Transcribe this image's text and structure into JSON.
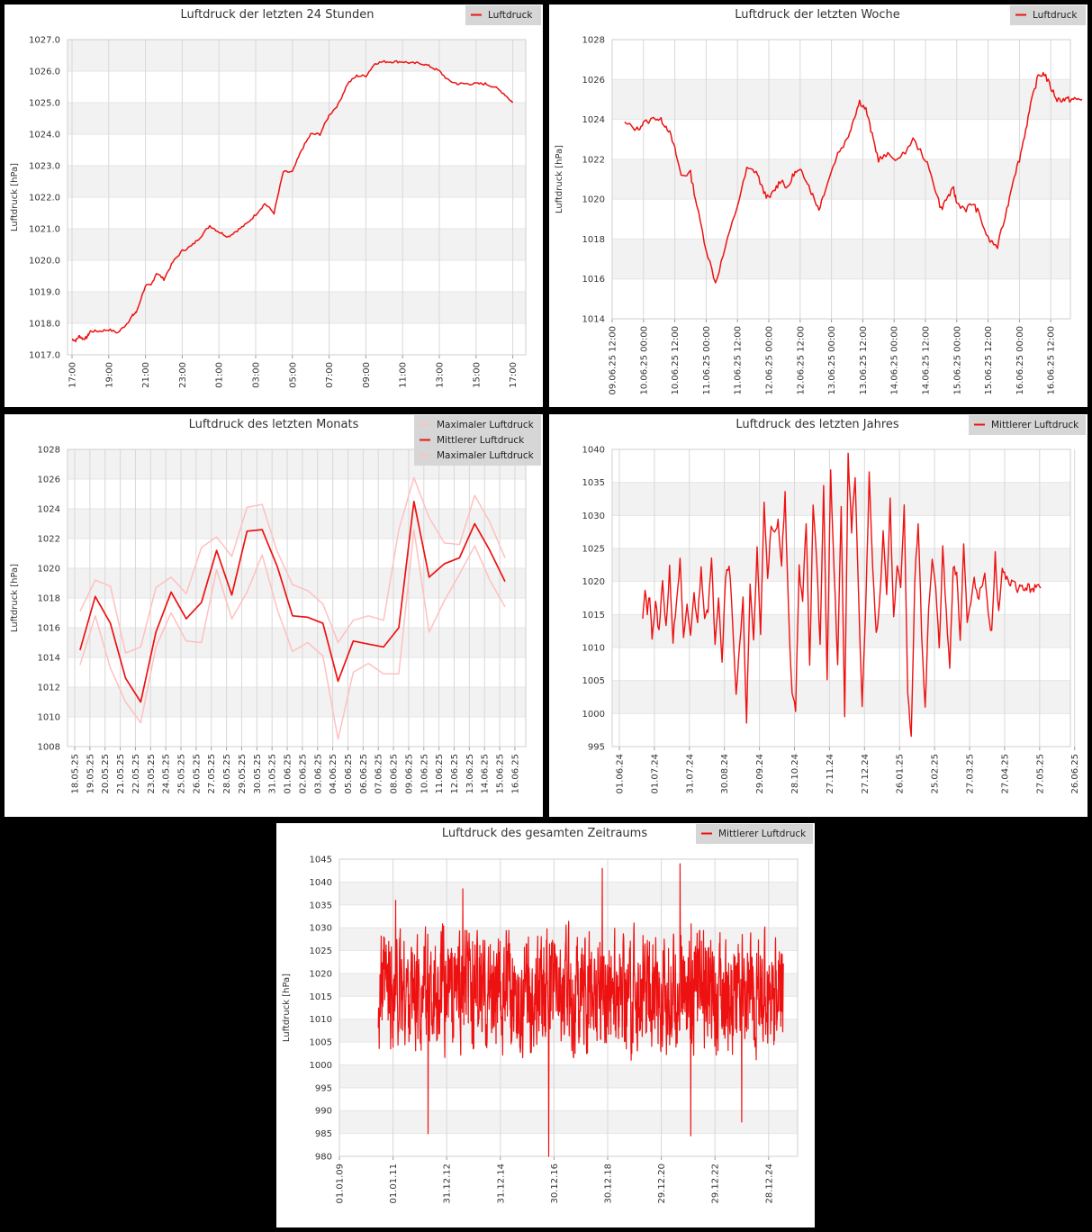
{
  "colors": {
    "background": "#000000",
    "panel": "#ffffff",
    "band": "#f2f2f2",
    "grid": "#d8d8d8",
    "line": "#ee1111",
    "line_light": "#ffc0c0",
    "legend_bg": "#d6d6d6"
  },
  "chart_data": [
    {
      "id": "day",
      "type": "line",
      "title": "Luftdruck der letzten 24 Stunden",
      "ylabel": "Luftdruck [hPa]",
      "xlabel": "",
      "ylim": [
        1017.0,
        1027.0
      ],
      "y_ticks": [
        "1017.0",
        "1018.0",
        "1019.0",
        "1020.0",
        "1021.0",
        "1022.0",
        "1023.0",
        "1024.0",
        "1025.0",
        "1026.0",
        "1027.0"
      ],
      "x_ticks": [
        "17:00",
        "19:00",
        "21:00",
        "23:00",
        "01:00",
        "03:00",
        "05:00",
        "07:00",
        "09:00",
        "11:00",
        "13:00",
        "15:00",
        "17:00"
      ],
      "grid": true,
      "legend_position": "top-right",
      "x": [
        0,
        0.2,
        0.4,
        0.6,
        0.8,
        1,
        1.5,
        2,
        2.5,
        3,
        3.3,
        3.5,
        4,
        4.3,
        4.6,
        5,
        5.5,
        6,
        6.5,
        7,
        7.5,
        8,
        8.5,
        9,
        9.5,
        10,
        10.5,
        11,
        11.5,
        12,
        12.5,
        13,
        13.5,
        14,
        14.5,
        15,
        15.5,
        16,
        16.5,
        17,
        17.5,
        18,
        18.5,
        19,
        19.5,
        20,
        20.5,
        21,
        21.5,
        22,
        22.5,
        23,
        23.5,
        24
      ],
      "series": [
        {
          "name": "Luftdruck",
          "color": "#ee1111",
          "values": [
            1017.5,
            1017.45,
            1017.6,
            1017.5,
            1017.55,
            1017.75,
            1017.75,
            1017.8,
            1017.7,
            1018.0,
            1018.25,
            1018.35,
            1019.2,
            1019.2,
            1019.6,
            1019.4,
            1019.95,
            1020.3,
            1020.45,
            1020.75,
            1021.1,
            1020.9,
            1020.75,
            1020.95,
            1021.15,
            1021.45,
            1021.8,
            1021.5,
            1022.8,
            1022.8,
            1023.5,
            1024.0,
            1024.0,
            1024.6,
            1024.95,
            1025.6,
            1025.85,
            1025.85,
            1026.25,
            1026.3,
            1026.3,
            1026.3,
            1026.25,
            1026.25,
            1026.15,
            1026.0,
            1025.7,
            1025.6,
            1025.6,
            1025.6,
            1025.6,
            1025.5,
            1025.3,
            1025.0
          ]
        }
      ]
    },
    {
      "id": "week",
      "type": "line",
      "title": "Luftdruck der letzten Woche",
      "ylabel": "Luftdruck [hPa]",
      "xlabel": "",
      "ylim": [
        1014,
        1028
      ],
      "y_ticks": [
        "1014",
        "1016",
        "1018",
        "1020",
        "1022",
        "1024",
        "1026",
        "1028"
      ],
      "x_ticks": [
        "09.06.25 12:00",
        "10.06.25 00:00",
        "10.06.25 12:00",
        "11.06.25 00:00",
        "11.06.25 12:00",
        "12.06.25 00:00",
        "12.06.25 12:00",
        "13.06.25 00:00",
        "13.06.25 12:00",
        "14.06.25 00:00",
        "14.06.25 12:00",
        "15.06.25 00:00",
        "15.06.25 12:00",
        "16.06.25 00:00",
        "16.06.25 12:00"
      ],
      "grid": true,
      "legend_position": "top-right",
      "x": [
        0.4,
        0.8,
        1,
        1.4,
        1.6,
        1.8,
        2,
        2.2,
        2.5,
        2.7,
        3,
        3.3,
        3.6,
        4,
        4.3,
        4.6,
        4.8,
        5,
        5.2,
        5.4,
        5.6,
        5.8,
        6,
        6.2,
        6.4,
        6.6,
        6.8,
        7.2,
        7.5,
        7.7,
        7.9,
        8.1,
        8.3,
        8.5,
        8.8,
        9.2,
        9.6,
        10,
        10.3,
        10.5,
        10.7,
        10.9,
        11,
        11.3,
        11.5,
        11.7,
        12,
        12.3,
        12.6,
        12.8,
        13,
        13.2,
        13.4,
        13.6,
        13.8,
        14,
        14.2,
        14.4,
        14.6,
        14.8,
        15
      ],
      "series": [
        {
          "name": "Luftdruck",
          "color": "#ee1111",
          "values": [
            1023.8,
            1023.5,
            1023.8,
            1024.1,
            1023.9,
            1023.5,
            1022.5,
            1021.2,
            1021.3,
            1019.7,
            1017.5,
            1015.8,
            1017.5,
            1019.7,
            1021.5,
            1021.4,
            1020.5,
            1020.0,
            1020.5,
            1021.0,
            1020.5,
            1021.3,
            1021.4,
            1021.0,
            1020.2,
            1019.5,
            1020.5,
            1022.3,
            1023.0,
            1024.0,
            1024.9,
            1024.5,
            1023.2,
            1022.0,
            1022.2,
            1022.0,
            1023.0,
            1022.0,
            1020.6,
            1019.5,
            1020.1,
            1020.5,
            1019.8,
            1019.5,
            1019.8,
            1019.3,
            1018.0,
            1017.6,
            1019.5,
            1021.0,
            1022.0,
            1023.5,
            1025.0,
            1026.2,
            1026.3,
            1025.6,
            1025.0,
            1025.0,
            1025.0,
            1025.0,
            1025.0
          ]
        }
      ]
    },
    {
      "id": "month",
      "type": "line",
      "title": "Luftdruck des letzten Monats",
      "ylabel": "Luftdruck [hPa]",
      "xlabel": "",
      "ylim": [
        1008,
        1028
      ],
      "y_ticks": [
        "1008",
        "1010",
        "1012",
        "1014",
        "1016",
        "1018",
        "1020",
        "1022",
        "1024",
        "1026",
        "1028"
      ],
      "categories": [
        "18.05.25",
        "19.05.25",
        "20.05.25",
        "21.05.25",
        "22.05.25",
        "23.05.25",
        "24.05.25",
        "25.05.25",
        "26.05.25",
        "27.05.25",
        "28.05.25",
        "29.05.25",
        "30.05.25",
        "31.05.25",
        "01.06.25",
        "02.06.25",
        "03.06.25",
        "04.06.25",
        "05.06.25",
        "06.06.25",
        "07.06.25",
        "08.06.25",
        "09.06.25",
        "10.06.25",
        "11.06.25",
        "12.06.25",
        "13.06.25",
        "14.06.25",
        "15.06.25",
        "16.06.25"
      ],
      "grid": true,
      "legend_position": "top-right",
      "series": [
        {
          "name": "Maximaler Luftdruck",
          "color": "#ffc0c0",
          "values": [
            1017.1,
            1019.2,
            1018.8,
            1014.3,
            1014.7,
            1018.7,
            1019.4,
            1018.3,
            1021.4,
            1022.1,
            1020.8,
            1024.1,
            1024.3,
            1021.1,
            1018.9,
            1018.5,
            1017.6,
            1015.0,
            1016.5,
            1016.8,
            1016.5,
            1022.6,
            1026.1,
            1023.4,
            1021.7,
            1021.6,
            1024.9,
            1023.1,
            1020.7,
            null
          ],
          "x_offset": 0
        },
        {
          "name": "Mittlerer Luftdruck",
          "color": "#ee1111",
          "values": [
            1014.5,
            1018.1,
            1016.3,
            1012.6,
            1011.0,
            1015.7,
            1018.4,
            1016.6,
            1017.7,
            1021.2,
            1018.2,
            1022.5,
            1022.6,
            1020.1,
            1016.8,
            1016.7,
            1016.3,
            1012.4,
            1015.1,
            1014.9,
            1014.7,
            1016.0,
            1024.5,
            1019.4,
            1020.3,
            1020.7,
            1023.0,
            1021.2,
            1019.1,
            null
          ]
        },
        {
          "name": "Maximaler Luftdruck",
          "color": "#ffc0c0",
          "values": [
            1013.5,
            1016.8,
            1013.3,
            1011.0,
            1009.6,
            1014.7,
            1017.0,
            1015.1,
            1015.0,
            1019.9,
            1016.6,
            1018.4,
            1020.9,
            1017.2,
            1014.4,
            1015.0,
            1014.1,
            1008.5,
            1013.0,
            1013.6,
            1012.9,
            1012.9,
            1022.6,
            1015.7,
            1017.8,
            1019.6,
            1021.5,
            1019.2,
            1017.4,
            null
          ]
        }
      ]
    },
    {
      "id": "year",
      "type": "line",
      "title": "Luftdruck des letzten Jahres",
      "ylabel": "",
      "xlabel": "",
      "ylim": [
        995,
        1040
      ],
      "y_ticks": [
        "995",
        "1000",
        "1005",
        "1010",
        "1015",
        "1020",
        "1025",
        "1030",
        "1035",
        "1040"
      ],
      "x_ticks": [
        "01.06.24",
        "01.07.24",
        "31.07.24",
        "30.08.24",
        "29.09.24",
        "28.10.24",
        "27.11.24",
        "27.12.24",
        "26.01.25",
        "25.02.25",
        "27.03.25",
        "27.04.25",
        "27.05.25",
        "26.06.25"
      ],
      "grid": true,
      "legend_position": "top-right",
      "series": [
        {
          "name": "Mittlerer Luftdruck",
          "color": "#ee1111",
          "x_days": [
            20,
            22,
            24,
            26,
            28,
            31,
            34,
            37,
            40,
            43,
            46,
            49,
            52,
            55,
            58,
            61,
            64,
            67,
            70,
            73,
            76,
            79,
            82,
            85,
            88,
            91,
            94,
            97,
            100,
            103,
            106,
            109,
            112,
            115,
            118,
            121,
            124,
            127,
            130,
            133,
            136,
            139,
            142,
            145,
            148,
            151,
            154,
            157,
            160,
            163,
            166,
            169,
            172,
            175,
            178,
            181,
            184,
            187,
            190,
            193,
            196,
            199,
            202,
            205,
            208,
            211,
            214,
            217,
            220,
            223,
            226,
            229,
            232,
            235,
            238,
            241,
            244,
            247,
            250,
            253,
            256,
            259,
            262,
            265,
            268,
            271,
            274,
            277,
            280,
            283,
            286,
            289,
            292,
            295,
            298,
            301,
            304,
            307,
            310,
            313,
            316,
            319,
            322,
            325,
            328,
            331,
            334,
            337,
            340,
            343,
            346,
            349,
            352,
            355,
            358,
            361
          ],
          "values": [
            1015,
            1019,
            1015,
            1018,
            1011,
            1017,
            1012,
            1020,
            1013,
            1022,
            1011,
            1017,
            1023,
            1011,
            1016,
            1012,
            1018,
            1014,
            1022,
            1015,
            1016,
            1023,
            1011,
            1018,
            1008,
            1021,
            1023,
            1014,
            1003,
            1010,
            1017,
            999,
            1019,
            1011,
            1025,
            1012,
            1032,
            1021,
            1028,
            1027,
            1029,
            1023,
            1033,
            1015,
            1003,
            1001,
            1022,
            1017,
            1029,
            1007,
            1032,
            1024,
            1010,
            1034,
            1005,
            1037,
            1021,
            1008,
            1031,
            1000,
            1039,
            1028,
            1036,
            1017,
            1001,
            1016,
            1036,
            1022,
            1012,
            1017,
            1028,
            1018,
            1032,
            1014,
            1023,
            1019,
            1031,
            1003,
            996,
            1020,
            1029,
            1012,
            1001,
            1016,
            1023,
            1019,
            1010,
            1025,
            1015,
            1007,
            1022,
            1021,
            1011,
            1026,
            1014,
            1017,
            1021,
            1017,
            1019,
            1021,
            1015,
            1012,
            1024,
            1015,
            1022,
            1021,
            1019,
            1020,
            1019,
            1019,
            1019,
            1019,
            1019,
            1019,
            1019,
            1019
          ],
          "xlim_days": [
            0,
            390
          ]
        }
      ]
    },
    {
      "id": "all",
      "type": "line",
      "title": "Luftdruck des gesamten Zeitraums",
      "ylabel": "Luftdruck [hPa]",
      "xlabel": "",
      "ylim": [
        980,
        1045
      ],
      "y_ticks": [
        "980",
        "985",
        "990",
        "995",
        "1000",
        "1005",
        "1010",
        "1015",
        "1020",
        "1025",
        "1030",
        "1035",
        "1040",
        "1045"
      ],
      "x_ticks": [
        "01.01.09",
        "01.01.11",
        "31.12.12",
        "31.12.14",
        "30.12.16",
        "30.12.18",
        "29.12.20",
        "29.12.22",
        "28.12.24"
      ],
      "grid": true,
      "legend_position": "top-right",
      "series": [
        {
          "name": "Mittlerer Luftdruck",
          "color": "#ee1111",
          "x_years": [
            1.45,
            16.55
          ],
          "notable_min": 980,
          "notable_max": 1044
        }
      ]
    }
  ]
}
